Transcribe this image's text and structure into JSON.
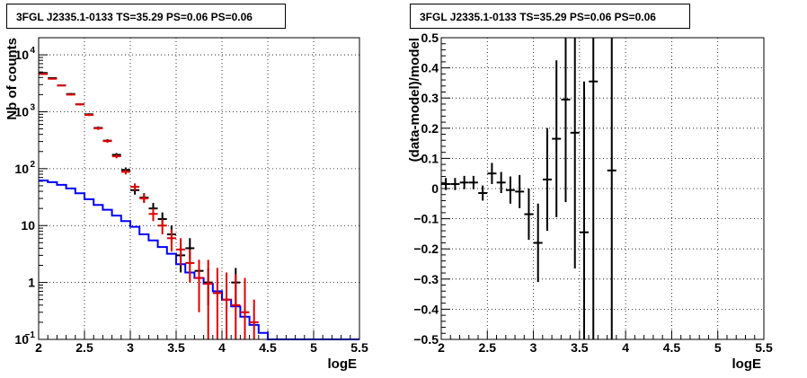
{
  "chart_data": [
    {
      "type": "line",
      "title": "3FGL J2335.1-0133 TS=35.29 PS=0.06 PS=0.06",
      "xlabel": "logE",
      "ylabel": "Nb of counts",
      "xlim": [
        2,
        5.5
      ],
      "ylim": [
        0.1,
        20000
      ],
      "yscale": "log",
      "grid": true,
      "xticks": [
        "2",
        "2.5",
        "3",
        "3.5",
        "4",
        "4.5",
        "5",
        "5.5"
      ],
      "yticks": [
        {
          "v": 0.1,
          "label": "10",
          "exp": "−1"
        },
        {
          "v": 1,
          "label": "1",
          "exp": ""
        },
        {
          "v": 10,
          "label": "10",
          "exp": ""
        },
        {
          "v": 100,
          "label": "10",
          "exp": "2"
        },
        {
          "v": 1000,
          "label": "10",
          "exp": "3"
        },
        {
          "v": 10000,
          "label": "10",
          "exp": "4"
        }
      ],
      "series": [
        {
          "kind": "step",
          "color": "#0000ff",
          "x_edges": [
            2.0,
            2.1,
            2.2,
            2.3,
            2.4,
            2.5,
            2.6,
            2.7,
            2.8,
            2.9,
            3.0,
            3.1,
            3.2,
            3.3,
            3.4,
            3.5,
            3.6,
            3.7,
            3.8,
            3.9,
            4.0,
            4.1,
            4.2,
            4.3,
            4.4,
            4.5,
            4.6,
            4.7,
            4.8,
            4.9,
            5.0,
            5.1,
            5.2,
            5.3,
            5.4,
            5.5
          ],
          "values": [
            62,
            58,
            52,
            45,
            37,
            29,
            23,
            19,
            15,
            12,
            9.5,
            7,
            5.5,
            4.2,
            3.2,
            2.1,
            1.5,
            1.2,
            0.95,
            0.7,
            0.5,
            0.38,
            0.25,
            0.18,
            0.13,
            0.1,
            0.1,
            0.1,
            0.1,
            0.1,
            0.1,
            0.1,
            0.1,
            0.1,
            0.1
          ]
        },
        {
          "kind": "errorbar",
          "color": "#000000",
          "points": [
            {
              "x": 2.05,
              "y": 4800,
              "lo": 4650,
              "hi": 4950
            },
            {
              "x": 2.15,
              "y": 3900,
              "lo": 3780,
              "hi": 4020
            },
            {
              "x": 2.25,
              "y": 2900,
              "lo": 2800,
              "hi": 3000
            },
            {
              "x": 2.35,
              "y": 2050,
              "lo": 1970,
              "hi": 2130
            },
            {
              "x": 2.45,
              "y": 1350,
              "lo": 1290,
              "hi": 1410
            },
            {
              "x": 2.55,
              "y": 900,
              "lo": 860,
              "hi": 940
            },
            {
              "x": 2.65,
              "y": 520,
              "lo": 490,
              "hi": 550
            },
            {
              "x": 2.75,
              "y": 310,
              "lo": 290,
              "hi": 330
            },
            {
              "x": 2.85,
              "y": 175,
              "lo": 162,
              "hi": 188
            },
            {
              "x": 2.95,
              "y": 95,
              "lo": 85,
              "hi": 105
            },
            {
              "x": 3.05,
              "y": 42,
              "lo": 35,
              "hi": 49
            },
            {
              "x": 3.15,
              "y": 31,
              "lo": 26,
              "hi": 37
            },
            {
              "x": 3.25,
              "y": 20,
              "lo": 16,
              "hi": 25
            },
            {
              "x": 3.35,
              "y": 13,
              "lo": 10,
              "hi": 17
            },
            {
              "x": 3.45,
              "y": 7,
              "lo": 5,
              "hi": 10
            },
            {
              "x": 3.55,
              "y": 3,
              "lo": 1.5,
              "hi": 4.5
            },
            {
              "x": 3.65,
              "y": 4,
              "lo": 2.5,
              "hi": 6
            },
            {
              "x": 3.75,
              "y": 1.6,
              "lo": 0.9,
              "hi": 2.5
            },
            {
              "x": 3.85,
              "y": 1,
              "lo": 0.4,
              "hi": 1.8
            },
            {
              "x": 4.15,
              "y": 1,
              "lo": 0.4,
              "hi": 1.8
            }
          ]
        },
        {
          "kind": "errorbar",
          "color": "#dd0000",
          "points": [
            {
              "x": 2.05,
              "y": 4600,
              "lo": 4450,
              "hi": 4750
            },
            {
              "x": 2.15,
              "y": 3800,
              "lo": 3680,
              "hi": 3920
            },
            {
              "x": 2.25,
              "y": 2900,
              "lo": 2800,
              "hi": 3000
            },
            {
              "x": 2.35,
              "y": 2000,
              "lo": 1920,
              "hi": 2080
            },
            {
              "x": 2.45,
              "y": 1350,
              "lo": 1290,
              "hi": 1410
            },
            {
              "x": 2.55,
              "y": 880,
              "lo": 840,
              "hi": 920
            },
            {
              "x": 2.65,
              "y": 510,
              "lo": 480,
              "hi": 540
            },
            {
              "x": 2.75,
              "y": 305,
              "lo": 285,
              "hi": 325
            },
            {
              "x": 2.85,
              "y": 165,
              "lo": 152,
              "hi": 178
            },
            {
              "x": 2.95,
              "y": 88,
              "lo": 79,
              "hi": 97
            },
            {
              "x": 3.05,
              "y": 48,
              "lo": 41,
              "hi": 55
            },
            {
              "x": 3.15,
              "y": 30,
              "lo": 25,
              "hi": 36
            },
            {
              "x": 3.25,
              "y": 16,
              "lo": 12,
              "hi": 20
            },
            {
              "x": 3.35,
              "y": 10,
              "lo": 7,
              "hi": 13
            },
            {
              "x": 3.45,
              "y": 6,
              "lo": 3.5,
              "hi": 8.5
            },
            {
              "x": 3.55,
              "y": 3.8,
              "lo": 2,
              "hi": 6
            },
            {
              "x": 3.65,
              "y": 2.2,
              "lo": 1,
              "hi": 3.8
            },
            {
              "x": 3.75,
              "y": 1.2,
              "lo": 0.3,
              "hi": 2.5
            },
            {
              "x": 3.85,
              "y": 0.95,
              "lo": 0.1,
              "hi": 2.5
            },
            {
              "x": 3.95,
              "y": 0.65,
              "lo": 0.1,
              "hi": 1.8
            },
            {
              "x": 4.05,
              "y": 0.5,
              "lo": 0.1,
              "hi": 1.5
            },
            {
              "x": 4.15,
              "y": 0.4,
              "lo": 0.1,
              "hi": 1.4
            },
            {
              "x": 4.25,
              "y": 0.3,
              "lo": 0.1,
              "hi": 1.2
            },
            {
              "x": 4.35,
              "y": 0.2,
              "lo": 0.1,
              "hi": 0.5
            }
          ]
        }
      ]
    },
    {
      "type": "scatter",
      "title": "3FGL J2335.1-0133 TS=35.29 PS=0.06 PS=0.06",
      "xlabel": "logE",
      "ylabel": "(data-model)/model",
      "xlim": [
        2,
        5.5
      ],
      "ylim": [
        -0.5,
        0.5
      ],
      "grid": true,
      "xticks": [
        "2",
        "2.5",
        "3",
        "3.5",
        "4",
        "4.5",
        "5",
        "5.5"
      ],
      "yticks": [
        "−0.5",
        "−0.4",
        "−0.3",
        "−0.2",
        "−0.1",
        "0",
        "0.1",
        "0.2",
        "0.3",
        "0.4",
        "0.5"
      ],
      "series": [
        {
          "kind": "errorbar",
          "color": "#000000",
          "points": [
            {
              "x": 2.05,
              "y": 0.015,
              "err": 0.02
            },
            {
              "x": 2.15,
              "y": 0.015,
              "err": 0.02
            },
            {
              "x": 2.25,
              "y": 0.02,
              "err": 0.022
            },
            {
              "x": 2.35,
              "y": 0.02,
              "err": 0.022
            },
            {
              "x": 2.45,
              "y": -0.015,
              "err": 0.025
            },
            {
              "x": 2.55,
              "y": 0.05,
              "err": 0.035
            },
            {
              "x": 2.65,
              "y": 0.02,
              "err": 0.035
            },
            {
              "x": 2.75,
              "y": -0.005,
              "err": 0.045
            },
            {
              "x": 2.85,
              "y": -0.01,
              "err": 0.055
            },
            {
              "x": 2.95,
              "y": -0.085,
              "err": 0.085
            },
            {
              "x": 3.05,
              "y": -0.18,
              "err": 0.13
            },
            {
              "x": 3.15,
              "y": 0.03,
              "err": 0.17
            },
            {
              "x": 3.25,
              "y": 0.165,
              "err": 0.26
            },
            {
              "x": 3.35,
              "y": 0.295,
              "err": 0.34
            },
            {
              "x": 3.45,
              "y": 0.185,
              "err": 0.45
            },
            {
              "x": 3.55,
              "y": -0.145,
              "err": 0.5
            },
            {
              "x": 3.65,
              "y": 0.355,
              "err": 0.9
            },
            {
              "x": 3.85,
              "y": 0.06,
              "err": 1.0
            }
          ]
        }
      ]
    }
  ]
}
